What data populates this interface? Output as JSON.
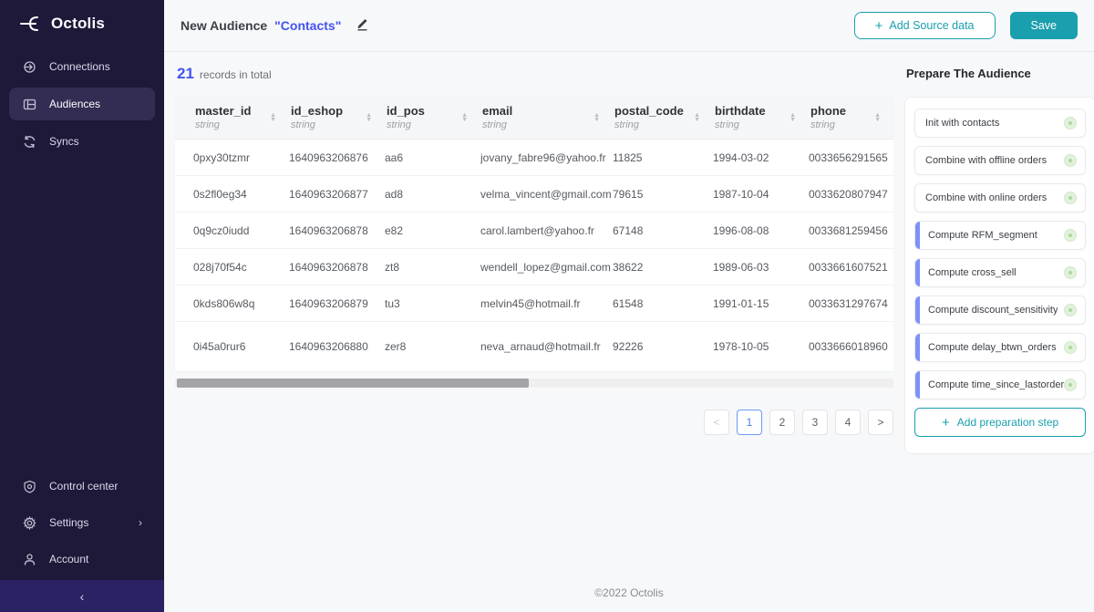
{
  "colors": {
    "teal": "#1a9fae",
    "blue": "#4353f0",
    "accent_bar": "#7e91fa",
    "page_active": "#4a7df3",
    "sidebar_bg": "#1e1839"
  },
  "sidebar": {
    "logo_text": "Octolis",
    "items": [
      {
        "label": "Connections",
        "icon": "connections-icon",
        "active": false
      },
      {
        "label": "Audiences",
        "icon": "audiences-icon",
        "active": true
      },
      {
        "label": "Syncs",
        "icon": "syncs-icon",
        "active": false
      }
    ],
    "bottom_items": [
      {
        "label": "Control center",
        "icon": "shield-icon",
        "chevron": false
      },
      {
        "label": "Settings",
        "icon": "gear-icon",
        "chevron": true
      },
      {
        "label": "Account",
        "icon": "person-icon",
        "chevron": false
      }
    ],
    "settings_chevron": "›",
    "collapse_icon": "‹"
  },
  "header": {
    "title_prefix": "New Audience",
    "title_name": "\"Contacts\"",
    "add_source_plus": "+",
    "add_source_label": "Add Source data",
    "save_label": "Save"
  },
  "records": {
    "count": "21",
    "label": "records in total"
  },
  "table": {
    "columns": [
      {
        "name": "master_id",
        "type": "string"
      },
      {
        "name": "id_eshop",
        "type": "string"
      },
      {
        "name": "id_pos",
        "type": "string"
      },
      {
        "name": "email",
        "type": "string"
      },
      {
        "name": "postal_code",
        "type": "string"
      },
      {
        "name": "birthdate",
        "type": "string"
      },
      {
        "name": "phone",
        "type": "string"
      }
    ],
    "rows": [
      [
        "0pxy30tzmr",
        "1640963206876",
        "aa6",
        "jovany_fabre96@yahoo.fr",
        "11825",
        "1994-03-02",
        "0033656291565"
      ],
      [
        "0s2fl0eg34",
        "1640963206877",
        "ad8",
        "velma_vincent@gmail.com",
        "79615",
        "1987-10-04",
        "0033620807947"
      ],
      [
        "0q9cz0iudd",
        "1640963206878",
        "e82",
        "carol.lambert@yahoo.fr",
        "67148",
        "1996-08-08",
        "0033681259456"
      ],
      [
        "028j70f54c",
        "1640963206878",
        "zt8",
        "wendell_lopez@gmail.com",
        "38622",
        "1989-06-03",
        "0033661607521"
      ],
      [
        "0kds806w8q",
        "1640963206879",
        "tu3",
        "melvin45@hotmail.fr",
        "61548",
        "1991-01-15",
        "0033631297674"
      ],
      [
        "0i45a0rur6",
        "1640963206880",
        "zer8",
        "neva_arnaud@hotmail.fr",
        "92226",
        "1978-10-05",
        "0033666018960"
      ]
    ],
    "sort_up": "▲",
    "sort_down": "▼"
  },
  "pagination": {
    "prev": "<",
    "pages": [
      "1",
      "2",
      "3",
      "4"
    ],
    "active": "1",
    "next": ">"
  },
  "panel": {
    "title": "Prepare The Audience",
    "steps": [
      {
        "label": "Init with contacts",
        "accent": false
      },
      {
        "label": "Combine with offline orders",
        "accent": false
      },
      {
        "label": "Combine with online orders",
        "accent": false
      },
      {
        "label": "Compute RFM_segment",
        "accent": true
      },
      {
        "label": "Compute cross_sell",
        "accent": true
      },
      {
        "label": "Compute discount_sensitivity",
        "accent": true
      },
      {
        "label": "Compute delay_btwn_orders",
        "accent": true
      },
      {
        "label": "Compute time_since_lastorder",
        "accent": true
      }
    ],
    "add_step_plus": "+",
    "add_step_label": "Add preparation step"
  },
  "footer": {
    "copyright": "©2022 Octolis"
  }
}
